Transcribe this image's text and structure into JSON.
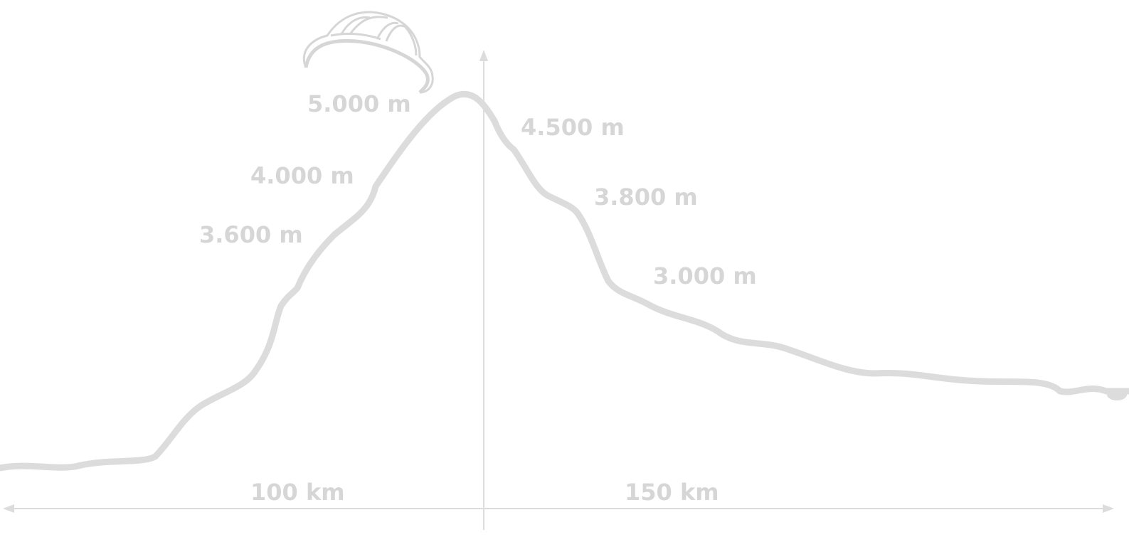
{
  "labels": {
    "elevations": [
      "5.000 m",
      "4.500 m",
      "4.000 m",
      "3.800 m",
      "3.600 m",
      "3.000 m"
    ],
    "distances": [
      "100 km",
      "150 km"
    ]
  }
}
